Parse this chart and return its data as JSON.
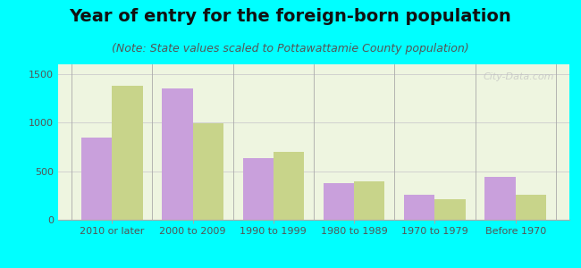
{
  "title": "Year of entry for the foreign-born population",
  "subtitle": "(Note: State values scaled to Pottawattamie County population)",
  "categories": [
    "2010 or later",
    "2000 to 2009",
    "1990 to 1999",
    "1980 to 1989",
    "1970 to 1979",
    "Before 1970"
  ],
  "pottawattamie": [
    850,
    1350,
    630,
    380,
    260,
    440
  ],
  "iowa": [
    1380,
    990,
    700,
    400,
    210,
    260
  ],
  "color_pottawattamie": "#c9a0dc",
  "color_iowa": "#c8d48a",
  "background_outer": "#00ffff",
  "background_inner": "#eef5e0",
  "ylim": [
    0,
    1600
  ],
  "yticks": [
    0,
    500,
    1000,
    1500
  ],
  "bar_width": 0.38,
  "title_fontsize": 14,
  "subtitle_fontsize": 9,
  "tick_fontsize": 8,
  "legend_fontsize": 9
}
